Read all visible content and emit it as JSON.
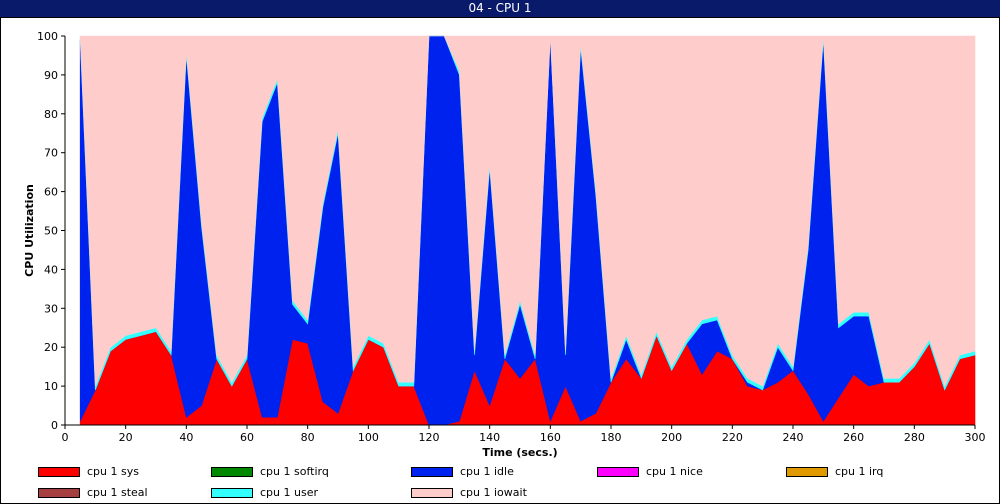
{
  "window": {
    "title": "04 - CPU 1"
  },
  "chart_data": {
    "type": "area",
    "stacked": true,
    "xlabel": "Time (secs.)",
    "ylabel": "CPU Utilization",
    "xlim": [
      0,
      300
    ],
    "ylim": [
      0,
      100
    ],
    "xticks": [
      0,
      20,
      40,
      60,
      80,
      100,
      120,
      140,
      160,
      180,
      200,
      220,
      240,
      260,
      280,
      300
    ],
    "yticks": [
      0,
      10,
      20,
      30,
      40,
      50,
      60,
      70,
      80,
      90,
      100
    ],
    "grid": false,
    "legend_position": "bottom",
    "x": [
      5,
      10,
      15,
      20,
      25,
      30,
      35,
      40,
      45,
      50,
      55,
      60,
      65,
      70,
      75,
      80,
      85,
      90,
      95,
      100,
      105,
      110,
      115,
      120,
      125,
      130,
      135,
      140,
      145,
      150,
      155,
      160,
      165,
      170,
      175,
      180,
      185,
      190,
      195,
      200,
      205,
      210,
      215,
      220,
      225,
      230,
      235,
      240,
      245,
      250,
      255,
      260,
      265,
      270,
      275,
      280,
      285,
      290,
      295,
      300
    ],
    "series": [
      {
        "name": "cpu 1 sys",
        "color": "#ff0000",
        "values": [
          1,
          9,
          19,
          22,
          23,
          24,
          18,
          2,
          5,
          17,
          10,
          17,
          2,
          2,
          22,
          21,
          6,
          3,
          14,
          22,
          20,
          10,
          10,
          0,
          0,
          1,
          14,
          5,
          17,
          12,
          17,
          1,
          10,
          1,
          3,
          11,
          17,
          12,
          23,
          14,
          21,
          13,
          19,
          17,
          10,
          9,
          11,
          14,
          8,
          1,
          7,
          13,
          10,
          11,
          11,
          15,
          21,
          9,
          17,
          18
        ]
      },
      {
        "name": "cpu 1 softirq",
        "color": "#008800",
        "values": [
          0,
          0,
          0,
          0,
          0,
          0,
          0,
          0,
          0,
          0,
          0,
          0,
          0,
          0,
          0,
          0,
          0,
          0,
          0,
          0,
          0,
          0,
          0,
          0,
          0,
          0,
          0,
          0,
          0,
          0,
          0,
          0,
          0,
          0,
          0,
          0,
          0,
          0,
          0,
          0,
          0,
          0,
          0,
          0,
          0,
          0,
          0,
          0,
          0,
          0,
          0,
          0,
          0,
          0,
          0,
          0,
          0,
          0,
          0,
          0
        ]
      },
      {
        "name": "cpu 1 idle",
        "color": "#0022ee",
        "values": [
          98,
          0,
          0,
          0,
          0,
          0,
          0,
          93,
          46,
          0,
          0,
          0,
          76,
          86,
          9,
          5,
          50,
          72,
          0,
          0,
          0,
          0,
          0,
          100,
          100,
          89,
          4,
          61,
          0,
          19,
          0,
          99,
          8,
          96,
          56,
          0,
          5,
          0,
          0,
          0,
          0,
          13,
          8,
          0,
          1,
          0,
          9,
          0,
          37,
          98,
          18,
          15,
          18,
          0,
          0,
          0,
          0,
          0,
          0,
          0
        ]
      },
      {
        "name": "cpu 1 nice",
        "color": "#ff00ff",
        "values": [
          0,
          0,
          0,
          0,
          0,
          0,
          0,
          0,
          0,
          0,
          0,
          0,
          0,
          0,
          0,
          0,
          0,
          0,
          0,
          0,
          0,
          0,
          0,
          0,
          0,
          0,
          0,
          0,
          0,
          0,
          0,
          0,
          0,
          0,
          0,
          0,
          0,
          0,
          0,
          0,
          0,
          0,
          0,
          0,
          0,
          0,
          0,
          0,
          0,
          0,
          0,
          0,
          0,
          0,
          0,
          0,
          0,
          0,
          0,
          0
        ]
      },
      {
        "name": "cpu 1 irq",
        "color": "#e09a00",
        "values": [
          0,
          0,
          0,
          0,
          0,
          0,
          0,
          0,
          0,
          0,
          0,
          0,
          0,
          0,
          0,
          0,
          0,
          0,
          0,
          0,
          0,
          0,
          0,
          0,
          0,
          0,
          0,
          0,
          0,
          0,
          0,
          0,
          0,
          0,
          0,
          0,
          0,
          0,
          0,
          0,
          0,
          0,
          0,
          0,
          0,
          0,
          0,
          0,
          0,
          0,
          0,
          0,
          0,
          0,
          0,
          0,
          0,
          0,
          0,
          0
        ]
      },
      {
        "name": "cpu 1 steal",
        "color": "#a63f3f",
        "values": [
          0,
          0,
          0,
          0,
          0,
          0,
          0,
          0,
          0,
          0,
          0,
          0,
          0,
          0,
          0,
          0,
          0,
          0,
          0,
          0,
          0,
          0,
          0,
          0,
          0,
          0,
          0,
          0,
          0,
          0,
          0,
          0,
          0,
          0,
          0,
          0,
          0,
          0,
          0,
          0,
          0,
          0,
          0,
          0,
          0,
          0,
          0,
          0,
          0,
          0,
          0,
          0,
          0,
          0,
          0,
          0,
          0,
          0,
          0,
          0
        ]
      },
      {
        "name": "cpu 1 user",
        "color": "#33ffff",
        "values": [
          1,
          1,
          1,
          1,
          1,
          1,
          1,
          1,
          1,
          1,
          1,
          1,
          1,
          1,
          1,
          1,
          1,
          1,
          1,
          1,
          1,
          1,
          1,
          0,
          0,
          1,
          1,
          1,
          1,
          1,
          1,
          0,
          1,
          1,
          1,
          1,
          1,
          1,
          1,
          1,
          1,
          1,
          1,
          1,
          1,
          1,
          1,
          1,
          1,
          1,
          1,
          1,
          1,
          1,
          1,
          1,
          1,
          1,
          1,
          1
        ]
      },
      {
        "name": "cpu 1 iowait",
        "color": "#ffcccc",
        "values": [
          0,
          90,
          80,
          77,
          76,
          75,
          81,
          4,
          48,
          82,
          89,
          82,
          21,
          11,
          68,
          73,
          43,
          24,
          85,
          77,
          79,
          89,
          89,
          0,
          0,
          9,
          81,
          33,
          82,
          68,
          82,
          0,
          81,
          2,
          40,
          88,
          77,
          87,
          76,
          85,
          78,
          73,
          72,
          82,
          88,
          90,
          79,
          85,
          54,
          0,
          74,
          71,
          71,
          88,
          88,
          84,
          78,
          90,
          82,
          81
        ]
      }
    ]
  }
}
